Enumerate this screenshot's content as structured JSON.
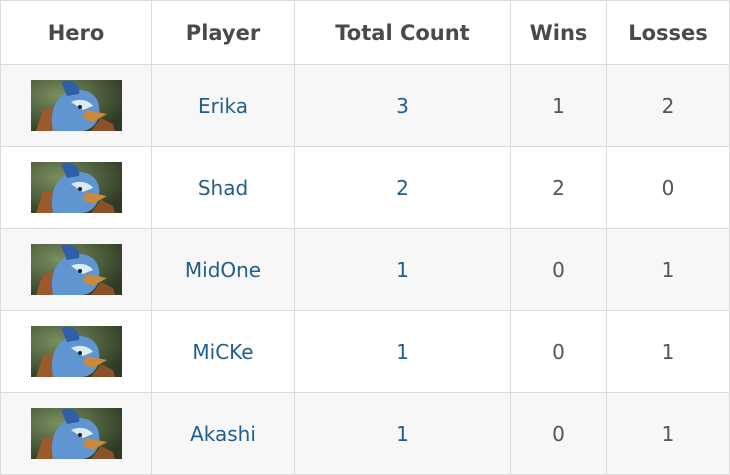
{
  "table": {
    "headers": [
      "Hero",
      "Player",
      "Total Count",
      "Wins",
      "Losses"
    ],
    "rows": [
      {
        "hero_icon": "hero-portrait-icon",
        "player": "Erika",
        "total": "3",
        "wins": "1",
        "losses": "2"
      },
      {
        "hero_icon": "hero-portrait-icon",
        "player": "Shad",
        "total": "2",
        "wins": "2",
        "losses": "0"
      },
      {
        "hero_icon": "hero-portrait-icon",
        "player": "MidOne",
        "total": "1",
        "wins": "0",
        "losses": "1"
      },
      {
        "hero_icon": "hero-portrait-icon",
        "player": "MiCKe",
        "total": "1",
        "wins": "0",
        "losses": "1"
      },
      {
        "hero_icon": "hero-portrait-icon",
        "player": "Akashi",
        "total": "1",
        "wins": "0",
        "losses": "1"
      }
    ]
  },
  "colors": {
    "link": "#1f5f8b",
    "header_text": "#4a4a4a",
    "border": "#dcdcdc",
    "row_alt": "#f7f7f7"
  }
}
